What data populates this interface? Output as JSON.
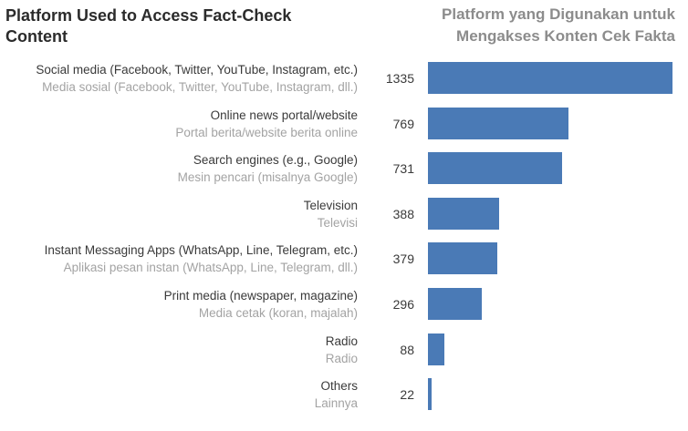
{
  "title_en": "Platform Used to Access Fact-Check Content",
  "title_id": "Platform yang Digunakan untuk Mengakses Konten Cek Fakta",
  "colors": {
    "bar": "#4a7ab6",
    "label_primary": "#3a3a3a",
    "label_secondary": "#a3a3a3"
  },
  "chart_data": {
    "type": "bar",
    "orientation": "horizontal",
    "title": "Platform Used to Access Fact-Check Content",
    "subtitle": "Platform yang Digunakan untuk Mengakses Konten Cek Fakta",
    "categories": [
      "Social media (Facebook, Twitter, YouTube, Instagram, etc.)",
      "Online news portal/website",
      "Search engines (e.g., Google)",
      "Television",
      "Instant Messaging Apps (WhatsApp, Line, Telegram, etc.)",
      "Print media (newspaper, magazine)",
      "Radio",
      "Others"
    ],
    "categories_id": [
      "Media sosial (Facebook, Twitter, YouTube, Instagram, dll.)",
      "Portal berita/website berita online",
      "Mesin pencari (misalnya Google)",
      "Televisi",
      "Aplikasi pesan instan (WhatsApp, Line, Telegram, dll.)",
      "Media cetak (koran, majalah)",
      "Radio",
      "Lainnya"
    ],
    "values": [
      1335,
      769,
      731,
      388,
      379,
      296,
      88,
      22
    ],
    "xlim": [
      0,
      1335
    ],
    "grid": false,
    "legend": "none",
    "data_labels": true
  }
}
